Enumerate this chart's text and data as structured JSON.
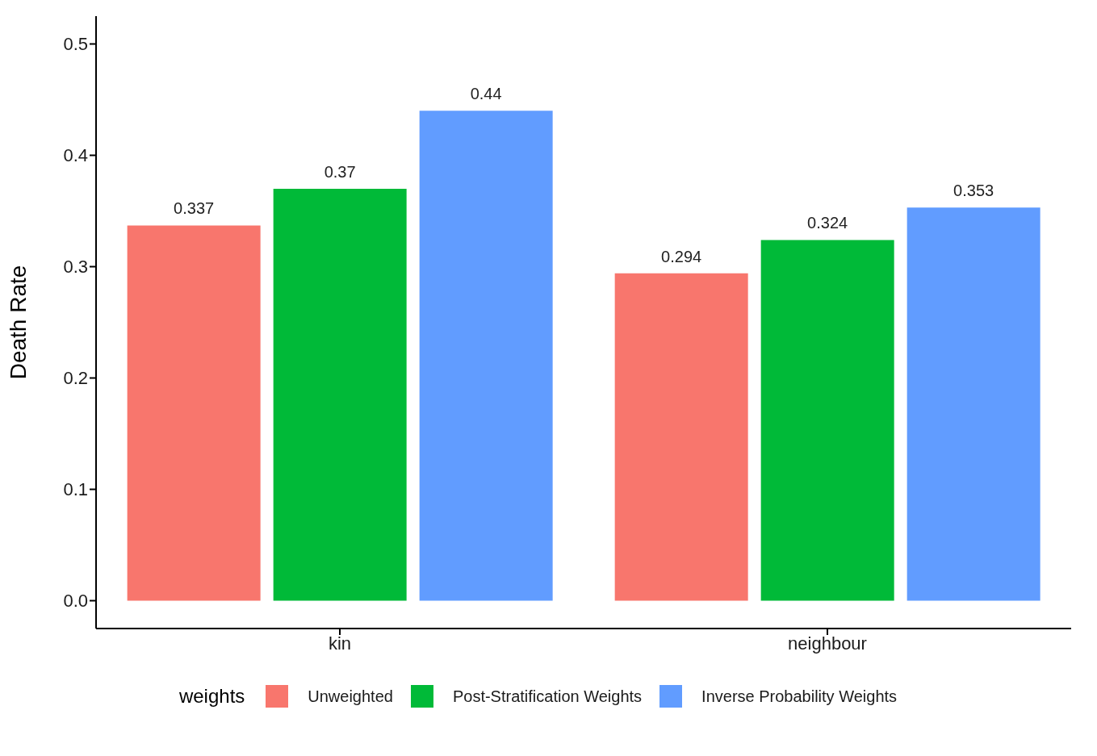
{
  "chart_data": {
    "type": "bar",
    "ylabel": "Death Rate",
    "legend_title": "weights",
    "categories": [
      "kin",
      "neighbour"
    ],
    "series": [
      {
        "name": "Unweighted",
        "color": "#f8766d",
        "values": [
          0.337,
          0.294
        ]
      },
      {
        "name": "Post-Stratification Weights",
        "color": "#00ba38",
        "values": [
          0.37,
          0.324
        ]
      },
      {
        "name": "Inverse Probability Weights",
        "color": "#619cff",
        "values": [
          0.44,
          0.353
        ]
      }
    ],
    "ylim": [
      -0.025,
      0.525
    ],
    "yticks": [
      {
        "value": 0,
        "label": "0.0"
      },
      0.1,
      0.2,
      0.3,
      0.4,
      0.5
    ],
    "grid": false,
    "legend": "bottom",
    "data_labels": true
  }
}
